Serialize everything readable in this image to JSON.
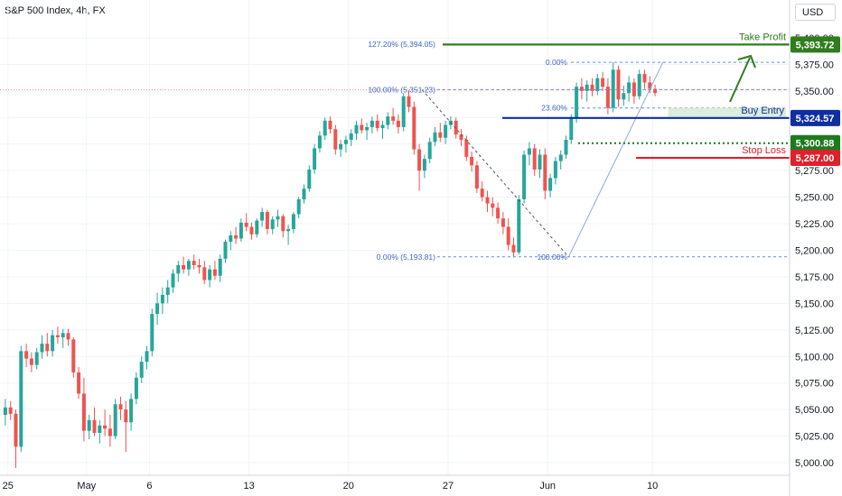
{
  "header": {
    "title": "S&P 500 Index, 4h, FX"
  },
  "currency_button": {
    "label": "USD"
  },
  "chart_data": {
    "type": "candlestick",
    "title": "S&P 500 Index, 4h, FX",
    "ylim": [
      4995,
      5410
    ],
    "y_ticks": [
      5000,
      5025,
      5050,
      5075,
      5100,
      5125,
      5150,
      5175,
      5200,
      5225,
      5250,
      5275,
      5300,
      5325,
      5350,
      5375,
      5400
    ],
    "y_tick_labels": [
      "5,000.00",
      "5,025.00",
      "5,050.00",
      "5,075.00",
      "5,100.00",
      "5,125.00",
      "5,150.00",
      "5,175.00",
      "5,200.00",
      "5,225.00",
      "5,250.00",
      "5,275.00",
      "5,300.00",
      "5,325.00",
      "5,350.00",
      "5,375.00",
      "5,400.00"
    ],
    "x_tick_labels": [
      "25",
      "May",
      "6",
      "13",
      "20",
      "27",
      "Jun",
      "10"
    ],
    "x_tick_bars": [
      1,
      16,
      28,
      47,
      66,
      85,
      104,
      124
    ],
    "bars_per_day": 2.55,
    "candles": [
      [
        5045,
        5060,
        5035,
        5052
      ],
      [
        5052,
        5058,
        5040,
        5046
      ],
      [
        5046,
        5050,
        4995,
        5015
      ],
      [
        5015,
        5110,
        5010,
        5105
      ],
      [
        5105,
        5112,
        5090,
        5098
      ],
      [
        5098,
        5104,
        5085,
        5092
      ],
      [
        5092,
        5108,
        5088,
        5104
      ],
      [
        5104,
        5120,
        5098,
        5112
      ],
      [
        5112,
        5122,
        5100,
        5105
      ],
      [
        5105,
        5125,
        5100,
        5120
      ],
      [
        5120,
        5128,
        5112,
        5118
      ],
      [
        5118,
        5126,
        5108,
        5122
      ],
      [
        5122,
        5126,
        5110,
        5116
      ],
      [
        5116,
        5118,
        5080,
        5085
      ],
      [
        5085,
        5090,
        5060,
        5065
      ],
      [
        5065,
        5080,
        5020,
        5030
      ],
      [
        5030,
        5045,
        5022,
        5040
      ],
      [
        5040,
        5052,
        5025,
        5028
      ],
      [
        5028,
        5040,
        5018,
        5035
      ],
      [
        5035,
        5050,
        5025,
        5032
      ],
      [
        5032,
        5045,
        5015,
        5025
      ],
      [
        5025,
        5060,
        5022,
        5055
      ],
      [
        5055,
        5062,
        5040,
        5050
      ],
      [
        5050,
        5058,
        5010,
        5038
      ],
      [
        5038,
        5065,
        5030,
        5060
      ],
      [
        5060,
        5085,
        5055,
        5080
      ],
      [
        5080,
        5100,
        5075,
        5095
      ],
      [
        5095,
        5110,
        5088,
        5105
      ],
      [
        5105,
        5145,
        5100,
        5140
      ],
      [
        5140,
        5160,
        5130,
        5150
      ],
      [
        5150,
        5165,
        5140,
        5158
      ],
      [
        5158,
        5172,
        5150,
        5165
      ],
      [
        5165,
        5182,
        5160,
        5178
      ],
      [
        5178,
        5190,
        5170,
        5186
      ],
      [
        5186,
        5194,
        5178,
        5182
      ],
      [
        5182,
        5192,
        5176,
        5190
      ],
      [
        5190,
        5196,
        5182,
        5186
      ],
      [
        5186,
        5192,
        5178,
        5184
      ],
      [
        5184,
        5190,
        5168,
        5172
      ],
      [
        5172,
        5186,
        5165,
        5182
      ],
      [
        5182,
        5190,
        5172,
        5176
      ],
      [
        5176,
        5196,
        5170,
        5192
      ],
      [
        5192,
        5210,
        5188,
        5208
      ],
      [
        5208,
        5218,
        5200,
        5214
      ],
      [
        5214,
        5222,
        5206,
        5211
      ],
      [
        5211,
        5230,
        5208,
        5226
      ],
      [
        5226,
        5235,
        5218,
        5222
      ],
      [
        5222,
        5226,
        5210,
        5215
      ],
      [
        5215,
        5230,
        5212,
        5228
      ],
      [
        5228,
        5240,
        5222,
        5236
      ],
      [
        5236,
        5238,
        5215,
        5220
      ],
      [
        5220,
        5232,
        5215,
        5229
      ],
      [
        5229,
        5238,
        5222,
        5232
      ],
      [
        5232,
        5234,
        5212,
        5218
      ],
      [
        5218,
        5224,
        5205,
        5220
      ],
      [
        5220,
        5236,
        5216,
        5234
      ],
      [
        5234,
        5250,
        5230,
        5248
      ],
      [
        5248,
        5262,
        5244,
        5258
      ],
      [
        5258,
        5280,
        5255,
        5276
      ],
      [
        5276,
        5300,
        5272,
        5296
      ],
      [
        5296,
        5312,
        5292,
        5308
      ],
      [
        5308,
        5325,
        5304,
        5322
      ],
      [
        5322,
        5326,
        5310,
        5314
      ],
      [
        5314,
        5318,
        5290,
        5295
      ],
      [
        5295,
        5304,
        5288,
        5300
      ],
      [
        5300,
        5308,
        5292,
        5304
      ],
      [
        5304,
        5314,
        5298,
        5310
      ],
      [
        5310,
        5322,
        5304,
        5318
      ],
      [
        5318,
        5324,
        5310,
        5313
      ],
      [
        5313,
        5320,
        5304,
        5316
      ],
      [
        5316,
        5326,
        5310,
        5322
      ],
      [
        5322,
        5328,
        5312,
        5315
      ],
      [
        5315,
        5322,
        5305,
        5318
      ],
      [
        5318,
        5330,
        5314,
        5326
      ],
      [
        5326,
        5334,
        5318,
        5322
      ],
      [
        5322,
        5328,
        5310,
        5316
      ],
      [
        5316,
        5348,
        5312,
        5345
      ],
      [
        5345,
        5351,
        5330,
        5335
      ],
      [
        5335,
        5340,
        5290,
        5295
      ],
      [
        5295,
        5300,
        5256,
        5275
      ],
      [
        5275,
        5290,
        5268,
        5286
      ],
      [
        5286,
        5306,
        5282,
        5302
      ],
      [
        5302,
        5316,
        5298,
        5311
      ],
      [
        5311,
        5320,
        5302,
        5306
      ],
      [
        5306,
        5322,
        5300,
        5318
      ],
      [
        5318,
        5326,
        5314,
        5322
      ],
      [
        5322,
        5325,
        5305,
        5309
      ],
      [
        5309,
        5314,
        5298,
        5304
      ],
      [
        5304,
        5308,
        5284,
        5288
      ],
      [
        5288,
        5293,
        5274,
        5280
      ],
      [
        5280,
        5284,
        5254,
        5258
      ],
      [
        5258,
        5265,
        5246,
        5250
      ],
      [
        5250,
        5256,
        5236,
        5244
      ],
      [
        5244,
        5250,
        5232,
        5240
      ],
      [
        5240,
        5245,
        5225,
        5230
      ],
      [
        5230,
        5236,
        5215,
        5222
      ],
      [
        5222,
        5230,
        5200,
        5205
      ],
      [
        5205,
        5212,
        5194,
        5198
      ],
      [
        5198,
        5252,
        5196,
        5248
      ],
      [
        5248,
        5294,
        5244,
        5290
      ],
      [
        5290,
        5302,
        5280,
        5296
      ],
      [
        5296,
        5300,
        5270,
        5276
      ],
      [
        5276,
        5295,
        5268,
        5290
      ],
      [
        5290,
        5296,
        5248,
        5256
      ],
      [
        5256,
        5272,
        5250,
        5268
      ],
      [
        5268,
        5288,
        5262,
        5284
      ],
      [
        5284,
        5294,
        5276,
        5290
      ],
      [
        5290,
        5308,
        5286,
        5304
      ],
      [
        5304,
        5328,
        5300,
        5325
      ],
      [
        5325,
        5358,
        5320,
        5354
      ],
      [
        5354,
        5362,
        5342,
        5350
      ],
      [
        5350,
        5360,
        5340,
        5356
      ],
      [
        5356,
        5362,
        5345,
        5350
      ],
      [
        5350,
        5366,
        5346,
        5362
      ],
      [
        5362,
        5368,
        5350,
        5354
      ],
      [
        5354,
        5362,
        5328,
        5334
      ],
      [
        5334,
        5377,
        5330,
        5370
      ],
      [
        5370,
        5374,
        5335,
        5342
      ],
      [
        5342,
        5355,
        5336,
        5348
      ],
      [
        5348,
        5364,
        5340,
        5358
      ],
      [
        5358,
        5362,
        5338,
        5345
      ],
      [
        5345,
        5370,
        5342,
        5366
      ],
      [
        5366,
        5370,
        5352,
        5358
      ],
      [
        5358,
        5364,
        5348,
        5352
      ],
      [
        5352,
        5356,
        5345,
        5348
      ]
    ],
    "horizontal_lines": [
      {
        "name": "Take Profit",
        "value": 5393.72,
        "label": "5,393.72",
        "color": "#2f7d1d"
      },
      {
        "name": "Buy Entry",
        "value": 5324.57,
        "label": "5,324.57",
        "color": "#0d2fa0"
      },
      {
        "name": "",
        "value": 5300.88,
        "label": "5,300.88",
        "color": "#1e7a1e"
      },
      {
        "name": "Stop Loss",
        "value": 5287.0,
        "label": "5,287.00",
        "color": "#e0202a"
      }
    ],
    "fibonacci": {
      "top_level_label": "100.00% (5,351.23)",
      "bottom_level_label": "0.00% (5,193.81)",
      "ext_level_label": "127.20% (5,394.05)",
      "retracement_labels": [
        "0.00%",
        "23.60%",
        "100.00%"
      ],
      "top": 5351.23,
      "bottom": 5193.81,
      "ext": 5394.05,
      "retr_top": 5377,
      "retr_236": 5334
    },
    "annotations": [
      "Take Profit",
      "Buy Entry",
      "Stop Loss"
    ],
    "colors": {
      "up": "#26a69a",
      "down": "#ef5350",
      "grid": "#f0f3fa"
    }
  }
}
